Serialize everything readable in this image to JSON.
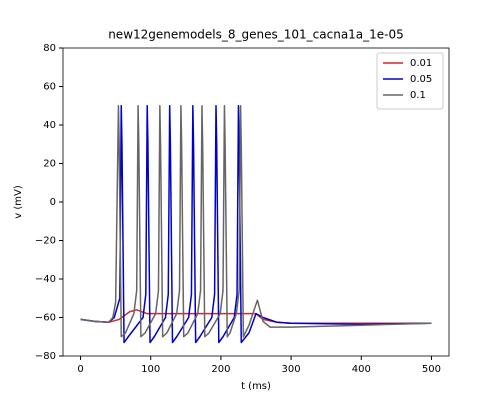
{
  "chart_data": {
    "type": "line",
    "title": "new12genemodels_8_genes_101_cacna1a_1e-05",
    "xlabel": "t (ms)",
    "ylabel": "v (mV)",
    "xlim": [
      -25,
      525
    ],
    "xticks": [
      0,
      100,
      200,
      300,
      400,
      500
    ],
    "ylim": [
      -80,
      80
    ],
    "yticks": [
      {
        "value": -80,
        "label": "−80"
      },
      {
        "value": -60,
        "label": "−60"
      },
      {
        "value": -40,
        "label": "−40"
      },
      {
        "value": -20,
        "label": "−20"
      },
      0,
      20,
      40,
      60,
      80
    ],
    "legend": "upper right",
    "grid": false,
    "series": [
      {
        "name": "0.01",
        "color": "#d62728",
        "x": [
          0,
          20,
          40,
          55,
          70,
          80,
          95,
          120,
          250,
          260,
          280,
          300,
          400,
          500
        ],
        "values": [
          -61,
          -62,
          -62.5,
          -61,
          -57,
          -56,
          -58,
          -58,
          -58,
          -61,
          -62.5,
          -63,
          -63,
          -63
        ]
      },
      {
        "name": "0.05",
        "color": "#0000cc",
        "x": [
          0,
          20,
          40,
          48,
          56,
          58,
          59,
          62,
          68,
          89,
          93,
          95,
          96,
          99,
          105,
          121,
          125,
          127,
          128,
          131,
          137,
          154,
          158,
          160,
          161,
          164,
          170,
          187,
          191,
          193,
          194,
          197,
          203,
          219,
          223,
          225,
          226,
          229,
          240,
          250,
          260,
          280,
          300,
          400,
          500
        ],
        "values": [
          -61,
          -62,
          -62.5,
          -60,
          -50,
          50,
          30,
          -73,
          -70,
          -60,
          -48,
          50,
          30,
          -73,
          -70,
          -60,
          -48,
          50,
          30,
          -73,
          -70,
          -60,
          -48,
          50,
          30,
          -73,
          -70,
          -60,
          -48,
          50,
          30,
          -73,
          -70,
          -60,
          -48,
          50,
          30,
          -73,
          -68,
          -58,
          -60,
          -62.5,
          -63,
          -63.5,
          -63
        ]
      },
      {
        "name": "0.1",
        "color": "#666666",
        "x": [
          0,
          20,
          40,
          46,
          50,
          54,
          55,
          58,
          64,
          76,
          80,
          82,
          83,
          86,
          92,
          107,
          111,
          113,
          114,
          117,
          123,
          137,
          141,
          143,
          144,
          147,
          153,
          167,
          171,
          173,
          174,
          177,
          183,
          199,
          203,
          205,
          206,
          209,
          213,
          222,
          226,
          228,
          229,
          232,
          240,
          252,
          260,
          270,
          300,
          400,
          500
        ],
        "values": [
          -61,
          -62,
          -62.5,
          -60,
          -52,
          50,
          30,
          -70,
          -68,
          -58,
          -46,
          50,
          30,
          -70,
          -68,
          -58,
          -46,
          50,
          30,
          -70,
          -68,
          -58,
          -46,
          50,
          30,
          -70,
          -68,
          -58,
          -46,
          50,
          30,
          -70,
          -68,
          -58,
          -46,
          50,
          30,
          -70,
          -68,
          -58,
          -46,
          50,
          30,
          -70,
          -64,
          -51,
          -62,
          -65,
          -65,
          -64,
          -63
        ]
      }
    ]
  }
}
